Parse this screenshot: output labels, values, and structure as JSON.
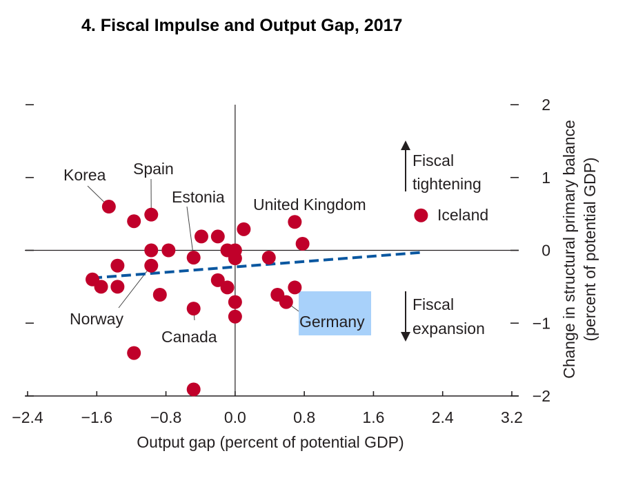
{
  "chart_data": {
    "type": "scatter",
    "title": "4. Fiscal Impulse and Output Gap, 2017",
    "xlabel": "Output gap (percent of potential GDP)",
    "ylabel": "Change in structural primary balance",
    "ylabel_line2": "(percent of potential GDP)",
    "xlim": [
      -2.4,
      3.2
    ],
    "ylim": [
      -2,
      2
    ],
    "xticks": [
      -2.4,
      -1.6,
      -0.8,
      0.0,
      0.8,
      1.6,
      2.4,
      3.2
    ],
    "xtick_labels": [
      "−2.4",
      "−1.6",
      "−0.8",
      "0.0",
      "0.8",
      "1.6",
      "2.4",
      "3.2"
    ],
    "yticks": [
      2,
      1,
      0,
      -1,
      -2
    ],
    "ytick_labels": [
      "2",
      "1",
      "0",
      "−1",
      "−2"
    ],
    "y_axis_side": "right",
    "grid": false,
    "colors": {
      "points": "#c0002a",
      "trend": "#0a57a0",
      "highlight": "#a8d1fa",
      "axis": "#231f20"
    },
    "points": [
      {
        "x": -1.46,
        "y": 0.6,
        "label": "Korea"
      },
      {
        "x": -1.17,
        "y": 0.4
      },
      {
        "x": -0.97,
        "y": 0.49,
        "label": "Spain"
      },
      {
        "x": -0.97,
        "y": 0.0
      },
      {
        "x": -0.77,
        "y": 0.0
      },
      {
        "x": -0.97,
        "y": -0.21,
        "label": "Norway"
      },
      {
        "x": -1.36,
        "y": -0.21
      },
      {
        "x": -1.65,
        "y": -0.4
      },
      {
        "x": -1.55,
        "y": -0.5
      },
      {
        "x": -1.36,
        "y": -0.5
      },
      {
        "x": -0.87,
        "y": -0.61
      },
      {
        "x": -0.48,
        "y": -0.1,
        "label": "Estonia"
      },
      {
        "x": -0.39,
        "y": 0.19
      },
      {
        "x": -0.2,
        "y": 0.19
      },
      {
        "x": -0.09,
        "y": 0.0
      },
      {
        "x": 0.0,
        "y": 0.0
      },
      {
        "x": 0.0,
        "y": -0.11
      },
      {
        "x": 0.1,
        "y": 0.29
      },
      {
        "x": -0.2,
        "y": -0.41
      },
      {
        "x": -0.09,
        "y": -0.51
      },
      {
        "x": 0.0,
        "y": -0.71
      },
      {
        "x": 0.0,
        "y": -0.91
      },
      {
        "x": -0.48,
        "y": -0.8,
        "label": "Canada"
      },
      {
        "x": -1.17,
        "y": -1.41
      },
      {
        "x": -0.48,
        "y": -1.91
      },
      {
        "x": 0.39,
        "y": -0.1
      },
      {
        "x": 0.69,
        "y": 0.39,
        "label": "United Kingdom"
      },
      {
        "x": 0.78,
        "y": 0.09
      },
      {
        "x": 0.69,
        "y": -0.51
      },
      {
        "x": 0.49,
        "y": -0.61
      },
      {
        "x": 0.59,
        "y": -0.71,
        "label": "Germany",
        "highlight": true
      },
      {
        "x": 2.15,
        "y": 0.48,
        "label": "Iceland"
      }
    ],
    "trend_line": {
      "style": "dashed",
      "from": {
        "x": -1.65,
        "y": -0.38
      },
      "to": {
        "x": 2.14,
        "y": -0.03
      }
    },
    "annotations": [
      {
        "text_lines": [
          "Fiscal",
          "tightening"
        ],
        "arrow": "up"
      },
      {
        "text_lines": [
          "Fiscal",
          "expansion"
        ],
        "arrow": "down"
      }
    ]
  }
}
